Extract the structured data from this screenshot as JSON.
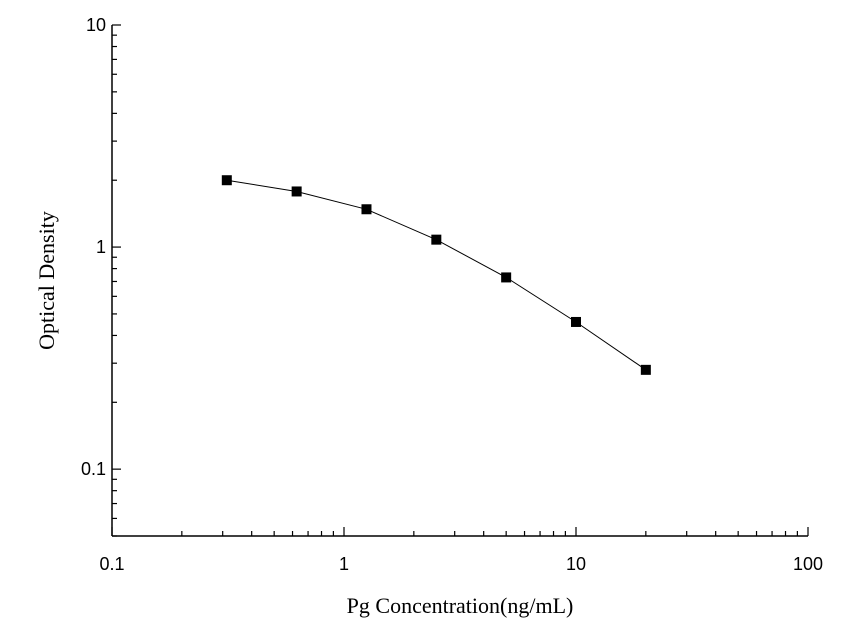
{
  "chart_data": {
    "type": "line",
    "title": "",
    "xlabel": "Pg  Concentration(ng/mL)",
    "ylabel": "Optical Density",
    "xscale": "log",
    "yscale": "log",
    "xlim": [
      0.1,
      100
    ],
    "ylim": [
      0.05,
      10
    ],
    "xticks": [
      0.1,
      1,
      10,
      100
    ],
    "xtick_labels": [
      "0.1",
      "1",
      "10",
      "100"
    ],
    "yticks": [
      0.1,
      1,
      10
    ],
    "ytick_labels": [
      "0.1",
      "1",
      "10"
    ],
    "grid": false,
    "legend": "none",
    "marker": "square",
    "color": "#000000",
    "series": [
      {
        "x": [
          0.3125,
          0.625,
          1.25,
          2.5,
          5,
          10,
          20
        ],
        "y": [
          2.0,
          1.78,
          1.48,
          1.08,
          0.73,
          0.46,
          0.28
        ]
      }
    ]
  }
}
